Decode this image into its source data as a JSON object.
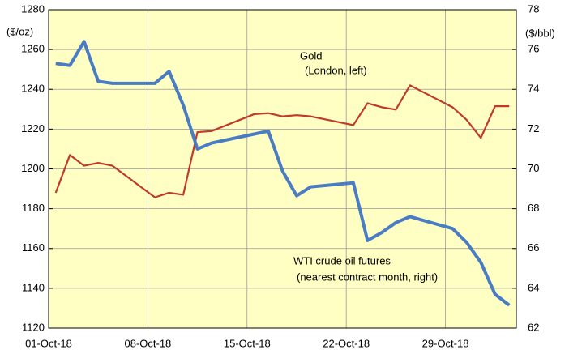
{
  "chart_data": {
    "type": "line",
    "x": [
      "01-Oct-18",
      "02-Oct-18",
      "03-Oct-18",
      "04-Oct-18",
      "05-Oct-18",
      "08-Oct-18",
      "09-Oct-18",
      "10-Oct-18",
      "11-Oct-18",
      "12-Oct-18",
      "15-Oct-18",
      "16-Oct-18",
      "17-Oct-18",
      "18-Oct-18",
      "19-Oct-18",
      "22-Oct-18",
      "23-Oct-18",
      "24-Oct-18",
      "25-Oct-18",
      "26-Oct-18",
      "29-Oct-18",
      "30-Oct-18",
      "31-Oct-18",
      "01-Nov-18",
      "02-Nov-18"
    ],
    "series": [
      {
        "name": "Gold",
        "color": "#c0392b",
        "axis": "y",
        "values": [
          1188,
          1207,
          1201.6,
          1203,
          1201.6,
          1185.7,
          1188,
          1187,
          1218.5,
          1219,
          1227.5,
          1228,
          1226.4,
          1227,
          1226.4,
          1222,
          1233,
          1231,
          1229.8,
          1242,
          1231,
          1224.6,
          1215.6,
          1231.5,
          1231.5
        ]
      },
      {
        "name": "WTI crude oil futures",
        "color": "#4a7cc4",
        "axis": "y2",
        "values": [
          75.3,
          75.2,
          76.4,
          74.4,
          74.3,
          74.3,
          74.9,
          73.2,
          71.0,
          71.3,
          71.75,
          71.9,
          69.9,
          68.65,
          69.1,
          69.3,
          66.4,
          66.8,
          67.3,
          67.6,
          67.0,
          66.3,
          65.3,
          63.7,
          63.15
        ]
      }
    ],
    "xlim": [
      "01-Oct-18",
      "03-Nov-18"
    ],
    "xticks": [
      "01-Oct-18",
      "08-Oct-18",
      "15-Oct-18",
      "22-Oct-18",
      "29-Oct-18"
    ],
    "ylim": [
      1120,
      1280
    ],
    "yticks": [
      1120,
      1140,
      1160,
      1180,
      1200,
      1220,
      1240,
      1260,
      1280
    ],
    "y2lim": [
      62,
      78
    ],
    "y2ticks": [
      62,
      64,
      66,
      68,
      70,
      72,
      74,
      76,
      78
    ],
    "ylabel": "($/oz)",
    "y2label": "($/bbl)",
    "annotations": [
      "Gold",
      "(London, left)",
      "WTI  crude  oil futures",
      "(nearest contract month, right)"
    ],
    "grid": true,
    "background": "#ffffc4"
  }
}
